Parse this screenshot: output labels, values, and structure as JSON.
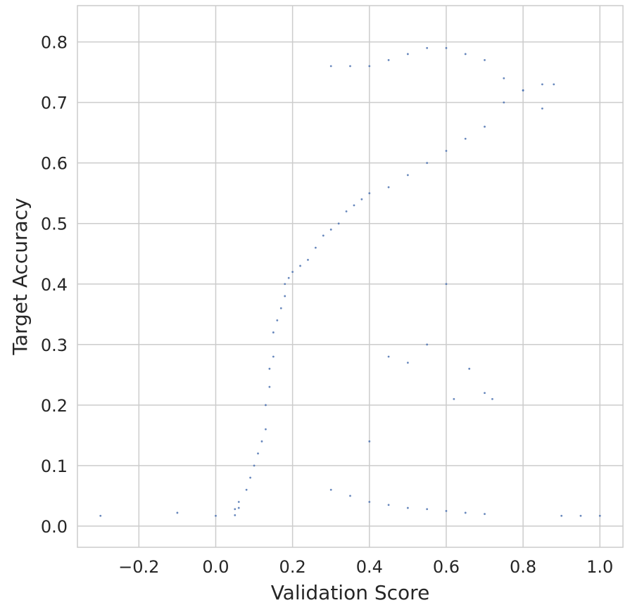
{
  "chart_data": {
    "type": "scatter",
    "title": "",
    "xlabel": "Validation Score",
    "ylabel": "Target Accuracy",
    "xlim": [
      -0.36,
      1.06
    ],
    "ylim": [
      -0.035,
      0.86
    ],
    "xticks": [
      -0.2,
      0.0,
      0.2,
      0.4,
      0.6,
      0.8,
      1.0
    ],
    "xtick_labels": [
      "−0.2",
      "0.0",
      "0.2",
      "0.4",
      "0.6",
      "0.8",
      "1.0"
    ],
    "yticks": [
      0.0,
      0.1,
      0.2,
      0.3,
      0.4,
      0.5,
      0.6,
      0.7,
      0.8
    ],
    "ytick_labels": [
      "0.0",
      "0.1",
      "0.2",
      "0.3",
      "0.4",
      "0.5",
      "0.6",
      "0.7",
      "0.8"
    ],
    "grid": true,
    "marker_color": "#4c72b0",
    "series": [
      {
        "x": [
          -0.3,
          -0.1,
          0.0,
          0.05,
          0.05,
          0.06,
          0.06,
          0.08,
          0.09,
          0.1,
          0.11,
          0.12,
          0.13,
          0.13,
          0.14,
          0.14,
          0.15,
          0.15,
          0.16,
          0.17,
          0.18,
          0.18,
          0.19,
          0.2,
          0.22,
          0.24,
          0.26,
          0.28,
          0.3,
          0.32,
          0.34,
          0.36,
          0.38,
          0.4,
          0.45,
          0.5,
          0.55,
          0.6,
          0.65,
          0.7,
          0.75,
          0.8,
          0.85,
          0.9,
          0.95,
          1.0,
          0.3,
          0.35,
          0.4,
          0.45,
          0.5,
          0.55,
          0.6,
          0.65,
          0.7,
          0.75,
          0.8,
          0.85,
          0.88,
          0.3,
          0.35,
          0.4,
          0.45,
          0.5,
          0.55,
          0.6,
          0.65,
          0.7,
          0.6,
          0.55,
          0.5,
          0.45,
          0.4,
          0.62,
          0.66,
          0.7,
          0.72
        ],
        "y": [
          0.017,
          0.022,
          0.017,
          0.018,
          0.028,
          0.03,
          0.04,
          0.06,
          0.08,
          0.1,
          0.12,
          0.14,
          0.16,
          0.2,
          0.23,
          0.26,
          0.28,
          0.32,
          0.34,
          0.36,
          0.38,
          0.4,
          0.41,
          0.42,
          0.43,
          0.44,
          0.46,
          0.48,
          0.49,
          0.5,
          0.52,
          0.53,
          0.54,
          0.55,
          0.56,
          0.58,
          0.6,
          0.62,
          0.64,
          0.66,
          0.7,
          0.72,
          0.73,
          0.017,
          0.017,
          0.017,
          0.76,
          0.76,
          0.76,
          0.77,
          0.78,
          0.79,
          0.79,
          0.78,
          0.77,
          0.74,
          0.72,
          0.69,
          0.73,
          0.06,
          0.05,
          0.04,
          0.035,
          0.03,
          0.028,
          0.025,
          0.022,
          0.02,
          0.4,
          0.3,
          0.27,
          0.28,
          0.14,
          0.21,
          0.26,
          0.22,
          0.21
        ]
      }
    ]
  }
}
